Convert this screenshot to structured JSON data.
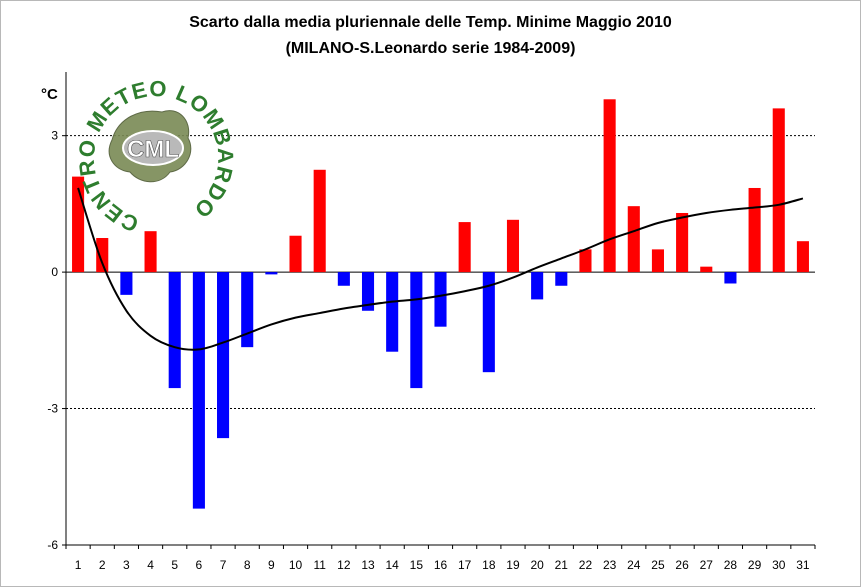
{
  "chart_data": {
    "type": "bar",
    "title": "Scarto dalla media pluriennale delle Temp. Minime Maggio 2010",
    "subtitle": "(MILANO-S.Leonardo serie 1984-2009)",
    "ylabel": "°C",
    "xlabel": "",
    "categories": [
      "1",
      "2",
      "3",
      "4",
      "5",
      "6",
      "7",
      "8",
      "9",
      "10",
      "11",
      "12",
      "13",
      "14",
      "15",
      "16",
      "17",
      "18",
      "19",
      "20",
      "21",
      "22",
      "23",
      "24",
      "25",
      "26",
      "27",
      "28",
      "29",
      "30",
      "31"
    ],
    "values": [
      2.1,
      0.75,
      -0.5,
      0.9,
      -2.55,
      -5.2,
      -3.65,
      -1.65,
      -0.05,
      0.8,
      2.25,
      -0.3,
      -0.85,
      -1.75,
      -2.55,
      -1.2,
      1.1,
      -2.2,
      1.15,
      -0.6,
      -0.3,
      0.5,
      3.8,
      1.45,
      0.5,
      1.3,
      0.12,
      -0.25,
      1.85,
      3.6,
      0.68
    ],
    "trend_values": [
      1.85,
      0.2,
      -0.85,
      -1.4,
      -1.65,
      -1.7,
      -1.55,
      -1.35,
      -1.15,
      -1.0,
      -0.9,
      -0.8,
      -0.72,
      -0.65,
      -0.6,
      -0.52,
      -0.42,
      -0.3,
      -0.12,
      0.1,
      0.3,
      0.5,
      0.72,
      0.9,
      1.08,
      1.2,
      1.3,
      1.37,
      1.42,
      1.48,
      1.62
    ],
    "ylim": [
      -6,
      4.4
    ],
    "yticks": [
      -6,
      -3,
      0,
      3
    ],
    "ytick_labels": [
      "-6",
      "-3",
      "0",
      "3"
    ],
    "gridlines": [
      -3,
      3
    ],
    "colors": {
      "positive": "#ff0000",
      "negative": "#0000ff",
      "trend": "#000000"
    }
  },
  "logo": {
    "arc_text": "CENTRO METEO LOMBARDO",
    "center_text": "CML",
    "color": "#2e7d2e"
  }
}
